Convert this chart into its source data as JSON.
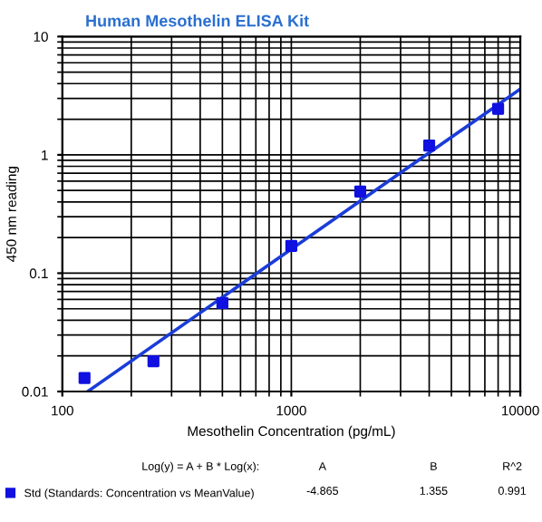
{
  "chart_data": {
    "type": "scatter",
    "title": "Human Mesothelin ELISA Kit",
    "xlabel": "Mesothelin Concentration (pg/mL)",
    "ylabel": "450 nm reading",
    "log": "xy",
    "grid": true,
    "legend": "bottom",
    "marker": "square",
    "xlim": [
      100,
      10000
    ],
    "xticks": [
      100,
      1000,
      10000
    ],
    "ylim": [
      0.01,
      10
    ],
    "yticks": [
      0.01,
      0.1,
      1,
      10
    ],
    "series": [
      {
        "name": "Std (Standards: Concentration vs MeanValue)",
        "color": "#1010e0",
        "x": [
          125,
          250,
          500,
          1000,
          2000,
          4000,
          8000
        ],
        "values": [
          0.013,
          0.018,
          0.056,
          0.17,
          0.49,
          1.2,
          2.45
        ]
      },
      {
        "type": "line",
        "color": "#1a3cd8",
        "marker": "none",
        "line_style": "solid",
        "x": [
          130,
          10000
        ],
        "values": [
          0.0101,
          3.6
        ]
      }
    ],
    "annotations": [
      "Log(y) = A + B * Log(x):",
      "A",
      "B",
      "R^2",
      "-4.865",
      "1.355",
      "0.991"
    ]
  }
}
